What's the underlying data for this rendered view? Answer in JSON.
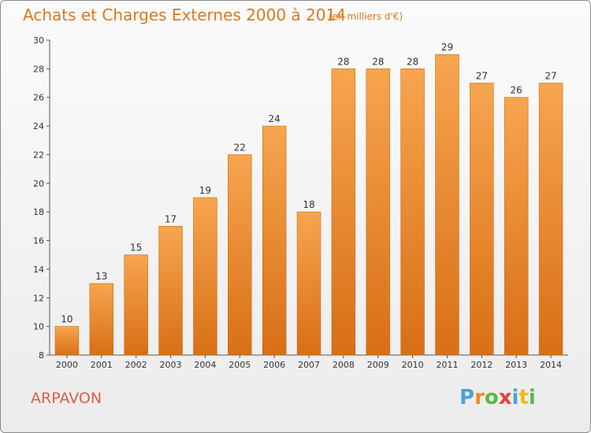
{
  "header": {
    "title": "Achats et Charges Externes 2000 à 2014",
    "subtitle": "(en milliers d'€)"
  },
  "footer": {
    "commune": "ARPAVON",
    "brand": {
      "letters": [
        "P",
        "r",
        "o",
        "x",
        "i",
        "t",
        "i"
      ],
      "colors": [
        "#4aa3d8",
        "#f08a1c",
        "#58b847",
        "#e8403a",
        "#4aa3d8",
        "#f0b81c",
        "#58b847"
      ]
    }
  },
  "colors": {
    "bar_top": "#f7a54f",
    "bar_bottom": "#d86f15",
    "axis": "#555555",
    "grid": "#cccccc",
    "text": "#333333"
  },
  "chart_data": {
    "type": "bar",
    "categories": [
      "2000",
      "2001",
      "2002",
      "2003",
      "2004",
      "2005",
      "2006",
      "2007",
      "2008",
      "2009",
      "2010",
      "2011",
      "2012",
      "2013",
      "2014"
    ],
    "values": [
      10,
      13,
      15,
      17,
      19,
      22,
      24,
      18,
      28,
      28,
      28,
      29,
      27,
      26,
      27
    ],
    "data_labels": [
      "10",
      "13",
      "15",
      "17",
      "19",
      "22",
      "24",
      "18",
      "28",
      "28",
      "28",
      "29",
      "27",
      "26",
      "27"
    ],
    "y_ticks": [
      8,
      10,
      12,
      14,
      16,
      18,
      20,
      22,
      24,
      26,
      28,
      30
    ],
    "y_tick_labels": [
      "8",
      "10",
      "12",
      "14",
      "16",
      "18",
      "20",
      "22",
      "24",
      "26",
      "28",
      "30"
    ],
    "ylim": [
      8,
      30
    ],
    "grid": false,
    "legend": "none"
  }
}
